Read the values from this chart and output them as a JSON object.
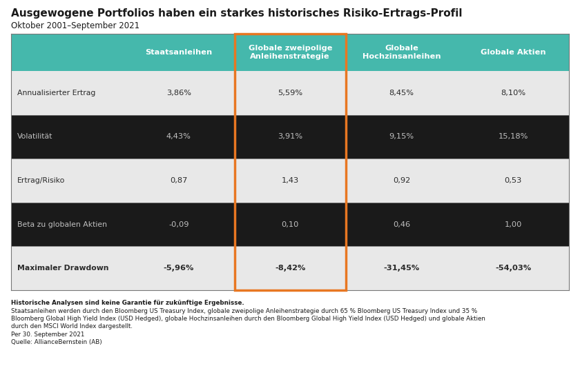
{
  "title": "Ausgewogene Portfolios haben ein starkes historisches Risiko-Ertrags-Profil",
  "subtitle": "Oktober 2001–September 2021",
  "bg_color": "#ffffff",
  "header_bg": "#45b8ac",
  "header_text_color": "#ffffff",
  "highlight_border_color": "#e87722",
  "col_headers": [
    "Staatsanleihen",
    "Globale zweipolige\nAnleihenstrategie",
    "Globale\nHochzinsanleihen",
    "Globale Aktien"
  ],
  "row_headers": [
    "Annualisierter Ertrag",
    "Volatilität",
    "Ertrag/Risiko",
    "Beta zu globalen Aktien",
    "Maximaler Drawdown"
  ],
  "data": [
    [
      "3,86%",
      "5,59%",
      "8,45%",
      "8,10%"
    ],
    [
      "4,43%",
      "3,91%",
      "9,15%",
      "15,18%"
    ],
    [
      "0,87",
      "1,43",
      "0,92",
      "0,53"
    ],
    [
      "-0,09",
      "0,10",
      "0,46",
      "1,00"
    ],
    [
      "-5,96%",
      "-8,42%",
      "-31,45%",
      "-54,03%"
    ]
  ],
  "row_fill_colors_label": [
    "#e8e8e8",
    "#1a1a1a",
    "#e8e8e8",
    "#1a1a1a",
    "#e8e8e8"
  ],
  "row_fill_colors_data": [
    "#e8e8e8",
    "#1a1a1a",
    "#e8e8e8",
    "#1a1a1a",
    "#e8e8e8"
  ],
  "row_text_colors": [
    "#2a2a2a",
    "#c0c0c0",
    "#2a2a2a",
    "#c0c0c0",
    "#2a2a2a"
  ],
  "footnote_bold": "Historische Analysen sind keine Garantie für zukünftige Ergebnisse.",
  "footnote_line2": "Staatsanleihen werden durch den Bloomberg US Treasury Index, globale zweipolige Anleihenstrategie durch 65 % Bloomberg US Treasury Index und 35 %",
  "footnote_line3": "Bloomberg Global High Yield Index (USD Hedged), globale Hochzinsanleihen durch den Bloomberg Global High Yield Index (USD Hedged) und globale Aktien",
  "footnote_line4": "durch den MSCI World Index dargestellt.",
  "footnote_line5": "Per 30. September 2021",
  "footnote_line6": "Quelle: AllianceBernstein (AB)"
}
